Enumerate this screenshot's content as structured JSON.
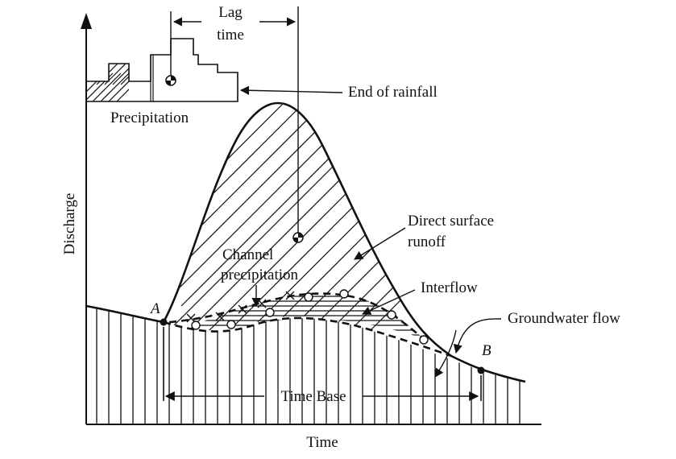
{
  "labels": {
    "lag_time_line1": "Lag",
    "lag_time_line2": "time",
    "end_of_rainfall": "End of rainfall",
    "precipitation": "Precipitation",
    "direct_surface_runoff_line1": "Direct surface",
    "direct_surface_runoff_line2": "runoff",
    "channel_precipitation_line1": "Channel",
    "channel_precipitation_line2": "precipitation",
    "interflow": "Interflow",
    "groundwater_flow": "Groundwater flow",
    "time_base": "Time Base",
    "point_a": "A",
    "point_b": "B"
  },
  "axes": {
    "x_label": "Time",
    "y_label": "Discharge"
  },
  "colors": {
    "ink": "#111111",
    "background": "#ffffff"
  }
}
